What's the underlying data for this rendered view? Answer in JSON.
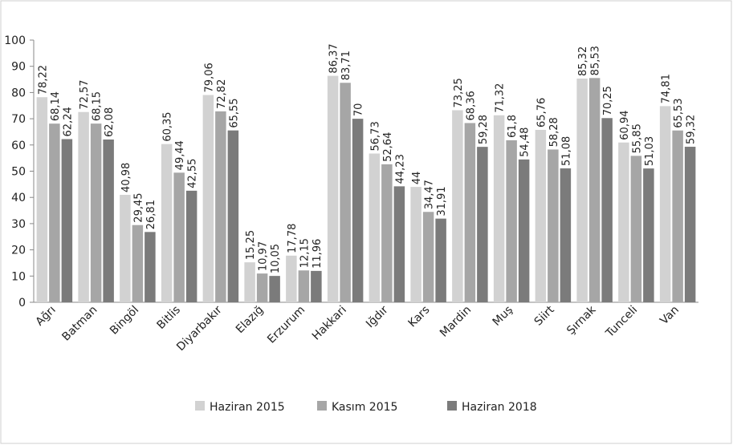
{
  "chart_data": {
    "type": "bar",
    "categories": [
      "Ağrı",
      "Batman",
      "Bingöl",
      "Bitlis",
      "Diyarbakır",
      "Elazığ",
      "Erzurum",
      "Hakkari",
      "Iğdır",
      "Kars",
      "Mardin",
      "Muş",
      "Siirt",
      "Şırnak",
      "Tunceli",
      "Van"
    ],
    "series": [
      {
        "name": "Haziran 2015",
        "color": "#d2d2d2",
        "values": [
          78.22,
          72.57,
          40.98,
          60.35,
          79.06,
          15.25,
          17.78,
          86.37,
          56.73,
          44,
          73.25,
          71.32,
          65.76,
          85.32,
          60.94,
          74.81
        ],
        "value_labels": [
          "78,22",
          "72,57",
          "40,98",
          "60,35",
          "79,06",
          "15,25",
          "17,78",
          "86,37",
          "56,73",
          "44",
          "73,25",
          "71,32",
          "65,76",
          "85,32",
          "60,94",
          "74,81"
        ]
      },
      {
        "name": "Kasım 2015",
        "color": "#a6a6a6",
        "values": [
          68.14,
          68.15,
          29.45,
          49.44,
          72.82,
          10.97,
          12.15,
          83.71,
          52.64,
          34.47,
          68.36,
          61.8,
          58.28,
          85.53,
          55.85,
          65.53
        ],
        "value_labels": [
          "68,14",
          "68,15",
          "29,45",
          "49,44",
          "72,82",
          "10,97",
          "12,15",
          "83,71",
          "52,64",
          "34,47",
          "68,36",
          "61,8",
          "58,28",
          "85,53",
          "55,85",
          "65,53"
        ]
      },
      {
        "name": "Haziran 2018",
        "color": "#7b7b7b",
        "values": [
          62.24,
          62.08,
          26.81,
          42.55,
          65.55,
          10.05,
          11.96,
          70,
          44.23,
          31.91,
          59.28,
          54.48,
          51.08,
          70.25,
          51.03,
          59.32
        ],
        "value_labels": [
          "62,24",
          "62,08",
          "26,81",
          "42,55",
          "65,55",
          "10,05",
          "11,96",
          "70",
          "44,23",
          "31,91",
          "59,28",
          "54,48",
          "51,08",
          "70,25",
          "51,03",
          "59,32"
        ]
      }
    ],
    "ylim": [
      0,
      100
    ],
    "yticks": [
      0,
      10,
      20,
      30,
      40,
      50,
      60,
      70,
      80,
      90,
      100
    ],
    "grid": false,
    "legend": "bottom"
  }
}
